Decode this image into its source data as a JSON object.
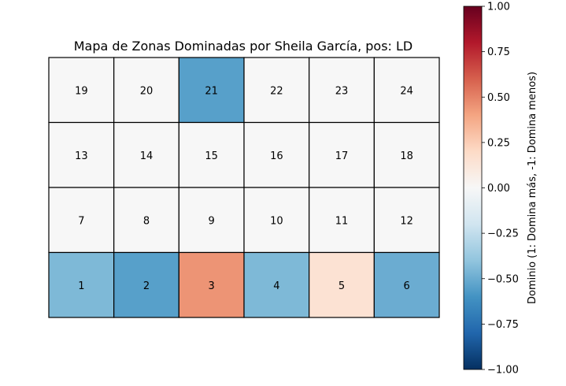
{
  "chart_data": {
    "type": "heatmap",
    "title": "Mapa de Zonas Dominadas por Sheila García, pos: LD",
    "grid": {
      "rows": 4,
      "cols": 6,
      "row_order": "top-to-bottom",
      "rows_zones": [
        [
          19,
          20,
          21,
          22,
          23,
          24
        ],
        [
          13,
          14,
          15,
          16,
          17,
          18
        ],
        [
          7,
          8,
          9,
          10,
          11,
          12
        ],
        [
          1,
          2,
          3,
          4,
          5,
          6
        ]
      ]
    },
    "values": {
      "1": -0.45,
      "2": -0.55,
      "3": 0.45,
      "4": -0.45,
      "5": 0.15,
      "6": -0.5,
      "7": 0,
      "8": 0,
      "9": 0,
      "10": 0,
      "11": 0,
      "12": 0,
      "13": 0,
      "14": 0,
      "15": 0,
      "16": 0,
      "17": 0,
      "18": 0,
      "19": 0,
      "20": 0,
      "21": -0.55,
      "22": 0,
      "23": 0,
      "24": 0
    },
    "colorbar": {
      "label": "Dominio (1: Domina más, -1: Domina menos)",
      "vmin": -1.0,
      "vmax": 1.0,
      "ticks": [
        1.0,
        0.75,
        0.5,
        0.25,
        0.0,
        -0.25,
        -0.5,
        -0.75,
        -1.0
      ],
      "tick_labels": [
        "1.00",
        "0.75",
        "0.50",
        "0.25",
        "0.00",
        "−0.25",
        "−0.50",
        "−0.75",
        "−1.00"
      ],
      "colormap": "RdBu_r",
      "colormap_stops": [
        "#053061",
        "#2166ac",
        "#4393c3",
        "#92c5de",
        "#d1e5f0",
        "#f7f7f7",
        "#fddbc7",
        "#f4a582",
        "#d6604d",
        "#b2182b",
        "#67001f"
      ]
    },
    "grid_lines": false
  }
}
